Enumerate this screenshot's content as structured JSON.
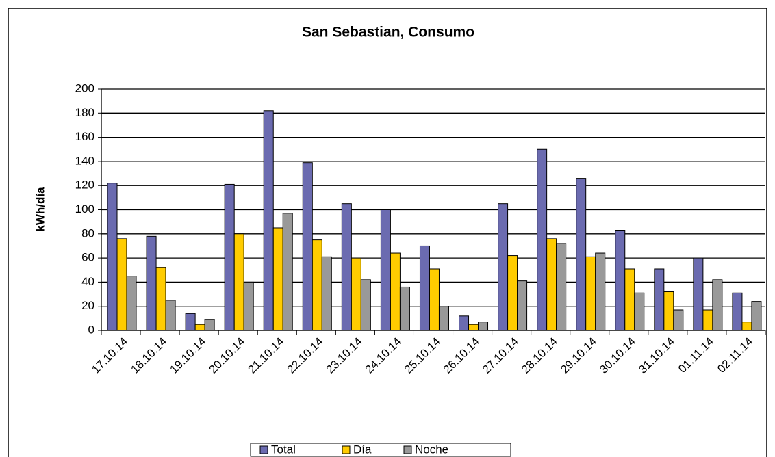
{
  "chart_data": {
    "type": "bar",
    "title": "San Sebastian, Consumo",
    "y_label": "kWh/día",
    "categories": [
      "17.10.14",
      "18.10.14",
      "19.10.14",
      "20.10.14",
      "21.10.14",
      "22.10.14",
      "23.10.14",
      "24.10.14",
      "25.10.14",
      "26.10.14",
      "27.10.14",
      "28.10.14",
      "29.10.14",
      "30.10.14",
      "31.10.14",
      "01.11.14",
      "02.11.14"
    ],
    "series": [
      {
        "name": "Total",
        "color": "#6b6bb0",
        "values": [
          122,
          78,
          14,
          121,
          182,
          139,
          105,
          100,
          70,
          12,
          105,
          150,
          126,
          83,
          51,
          60,
          31
        ]
      },
      {
        "name": "Día",
        "color": "#ffcc00",
        "values": [
          76,
          52,
          5,
          80,
          85,
          75,
          60,
          64,
          51,
          5,
          62,
          76,
          61,
          51,
          32,
          17,
          7
        ]
      },
      {
        "name": "Noche",
        "color": "#999999",
        "values": [
          45,
          25,
          9,
          40,
          97,
          61,
          42,
          36,
          20,
          7,
          41,
          72,
          64,
          31,
          17,
          42,
          24
        ]
      }
    ],
    "ylim": [
      0,
      200
    ],
    "yticks": [
      0,
      20,
      40,
      60,
      80,
      100,
      120,
      140,
      160,
      180,
      200
    ],
    "grid": true,
    "legend": "bottom"
  }
}
